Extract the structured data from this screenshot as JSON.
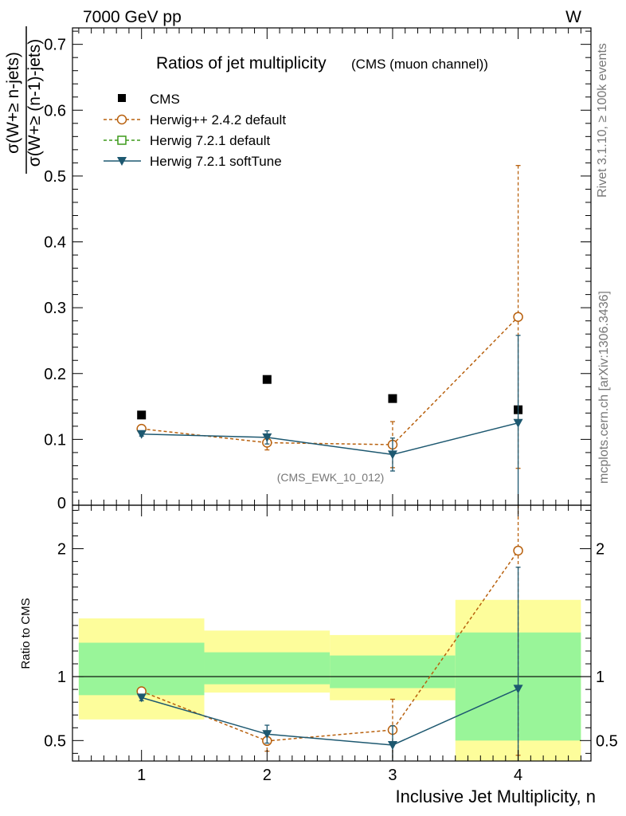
{
  "header": {
    "energy_label": "7000 GeV pp",
    "process_label": "W",
    "title_main": "Ratios of jet multiplicity",
    "title_sub": "(CMS (muon channel))",
    "analysis_id": "(CMS_EWK_10_012)",
    "side_label_rivet": "Rivet 3.1.10, ≥ 100k events",
    "side_label_mcplots": "mcplots.cern.ch [arXiv:1306.3436]"
  },
  "chart_data": [
    {
      "type": "scatter",
      "panel": "main",
      "ylabel_numerator": "σ(W+≥ n-jets)",
      "ylabel_denominator": "σ(W+≥ (n-1)-jets)",
      "xlim": [
        0.45,
        4.58
      ],
      "ylim": [
        0,
        0.725
      ],
      "y_ticks": [
        0.1,
        0.2,
        0.3,
        0.4,
        0.5,
        0.6,
        0.7
      ],
      "y_tick_labels": [
        "0.1",
        "0.2",
        "0.3",
        "0.4",
        "0.5",
        "0.6",
        "0.7"
      ],
      "y_zero_label": "0",
      "legend": [
        "CMS",
        "Herwig++ 2.4.2 default",
        "Herwig 7.2.1 default",
        "Herwig 7.2.1 softTune"
      ],
      "legend_position": "top-left",
      "series": [
        {
          "name": "CMS",
          "x": [
            1,
            2,
            3,
            4
          ],
          "values": [
            0.137,
            0.191,
            0.162,
            0.145
          ],
          "errors": [
            0.0,
            0.0,
            0.0,
            0.0
          ]
        },
        {
          "name": "Herwig++ 2.4.2 default",
          "x": [
            1,
            2,
            3,
            4
          ],
          "values": [
            0.116,
            0.095,
            0.092,
            0.286
          ],
          "errors": [
            0.004,
            0.011,
            0.035,
            0.23
          ]
        },
        {
          "name": "Herwig 7.2.1 default",
          "x": [],
          "values": [],
          "errors": []
        },
        {
          "name": "Herwig 7.2.1 softTune",
          "x": [
            1,
            2,
            3,
            4
          ],
          "values": [
            0.108,
            0.103,
            0.077,
            0.125
          ],
          "errors": [
            0.003,
            0.01,
            0.025,
            0.133
          ]
        }
      ]
    },
    {
      "type": "scatter",
      "panel": "ratio",
      "ylabel": "Ratio to CMS",
      "xlabel": "Inclusive Jet Multiplicity, n",
      "xlim": [
        0.45,
        4.58
      ],
      "ylim": [
        0.34,
        2.34
      ],
      "y_ticks": [
        0.5,
        1,
        2
      ],
      "y_tick_labels": [
        "0.5",
        "1",
        "2"
      ],
      "x_ticks": [
        1,
        2,
        3,
        4
      ],
      "x_tick_labels": [
        "1",
        "2",
        "3",
        "4"
      ],
      "cms_uncertainty_bands": [
        {
          "x_range": [
            0.5,
            1.5
          ],
          "inner": [
            0.855,
            1.265
          ],
          "outer": [
            0.665,
            1.455
          ]
        },
        {
          "x_range": [
            1.5,
            2.5
          ],
          "inner": [
            0.94,
            1.19
          ],
          "outer": [
            0.875,
            1.36
          ]
        },
        {
          "x_range": [
            2.5,
            3.5
          ],
          "inner": [
            0.91,
            1.165
          ],
          "outer": [
            0.815,
            1.325
          ]
        },
        {
          "x_range": [
            3.5,
            4.5
          ],
          "inner": [
            0.5,
            1.345
          ],
          "outer": [
            0.34,
            1.6
          ]
        }
      ],
      "series": [
        {
          "name": "Herwig++ 2.4.2 default",
          "x": [
            1,
            2,
            3,
            4
          ],
          "values": [
            0.885,
            0.497,
            0.583,
            1.985
          ],
          "errors": [
            0.03,
            0.08,
            0.24,
            1.6
          ]
        },
        {
          "name": "Herwig 7.2.1 softTune",
          "x": [
            1,
            2,
            3,
            4
          ],
          "values": [
            0.836,
            0.55,
            0.465,
            0.905
          ],
          "errors": [
            0.025,
            0.07,
            0.15,
            0.95
          ]
        }
      ]
    }
  ],
  "colors": {
    "cms": "#000000",
    "herwigpp": "#b8600d",
    "herwig721_default": "#3d9a1a",
    "herwig721_softtune": "#1d5870",
    "band_inner": "#99f599",
    "band_outer": "#fdfd9b"
  }
}
